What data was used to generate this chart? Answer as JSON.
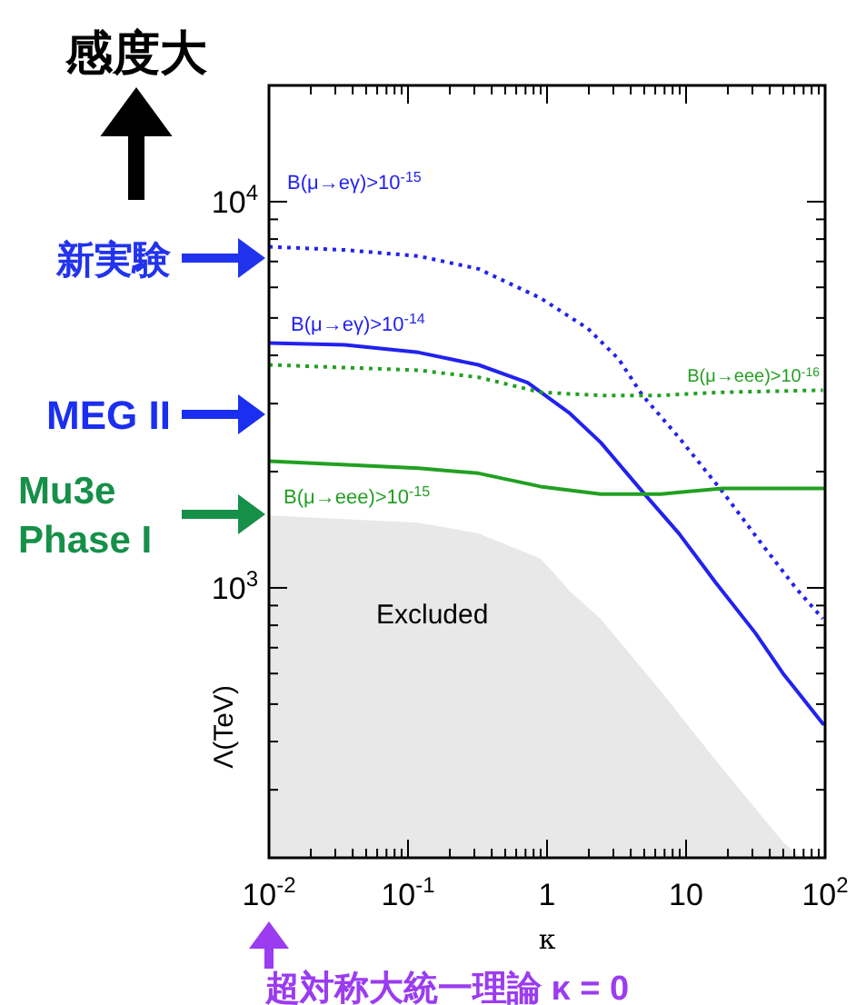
{
  "chart_data": {
    "type": "line",
    "xlabel": "κ",
    "ylabel": "Λ(TeV)",
    "log": "xy",
    "xlim": [
      0.01,
      100
    ],
    "ylim": [
      200,
      20000
    ],
    "xticks": [
      {
        "value": 0.01,
        "label": "10$^{-2}$"
      },
      {
        "value": 0.02,
        "label": null
      },
      {
        "value": 0.03,
        "label": null
      },
      {
        "value": 0.04,
        "label": null
      },
      {
        "value": 0.05,
        "label": null
      },
      {
        "value": 0.06,
        "label": null
      },
      {
        "value": 0.07,
        "label": null
      },
      {
        "value": 0.08,
        "label": null
      },
      {
        "value": 0.09,
        "label": null
      },
      {
        "value": 0.1,
        "label": "10$^{-1}$"
      },
      {
        "value": 0.2,
        "label": null
      },
      {
        "value": 0.3,
        "label": null
      },
      {
        "value": 0.4,
        "label": null
      },
      {
        "value": 0.5,
        "label": null
      },
      {
        "value": 0.6,
        "label": null
      },
      {
        "value": 0.7,
        "label": null
      },
      {
        "value": 0.8,
        "label": null
      },
      {
        "value": 0.9,
        "label": null
      },
      1,
      {
        "value": 2,
        "label": null
      },
      {
        "value": 3,
        "label": null
      },
      {
        "value": 4,
        "label": null
      },
      {
        "value": 5,
        "label": null
      },
      {
        "value": 6,
        "label": null
      },
      {
        "value": 7,
        "label": null
      },
      {
        "value": 8,
        "label": null
      },
      {
        "value": 9,
        "label": null
      },
      10,
      {
        "value": 20,
        "label": null
      },
      {
        "value": 30,
        "label": null
      },
      {
        "value": 40,
        "label": null
      },
      {
        "value": 50,
        "label": null
      },
      {
        "value": 60,
        "label": null
      },
      {
        "value": 70,
        "label": null
      },
      {
        "value": 80,
        "label": null
      },
      {
        "value": 90,
        "label": null
      },
      {
        "value": 100,
        "label": "10$^{2}$"
      }
    ],
    "yticks": [
      {
        "value": 300,
        "label": null
      },
      {
        "value": 400,
        "label": null
      },
      {
        "value": 500,
        "label": null
      },
      {
        "value": 600,
        "label": null
      },
      {
        "value": 700,
        "label": null
      },
      {
        "value": 800,
        "label": null
      },
      {
        "value": 900,
        "label": null
      },
      {
        "value": 1000,
        "label": "10$^{3}$"
      },
      {
        "value": 2000,
        "label": null
      },
      {
        "value": 3000,
        "label": null
      },
      {
        "value": 4000,
        "label": null
      },
      {
        "value": 5000,
        "label": null
      },
      {
        "value": 6000,
        "label": null
      },
      {
        "value": 7000,
        "label": null
      },
      {
        "value": 8000,
        "label": null
      },
      {
        "value": 9000,
        "label": null
      },
      {
        "value": 10000,
        "label": "10$^{4}$"
      }
    ],
    "series": [
      {
        "type": "area",
        "name": "Excluded",
        "color": "#e8e8e8",
        "x": [
          0.01,
          0.119,
          0.321,
          0.897,
          1.1,
          1.46,
          2.43,
          6.58,
          18.3,
          49.7,
          67.1
        ],
        "values": [
          1540,
          1475,
          1383,
          1190,
          1100,
          979,
          832,
          540,
          340,
          220,
          200
        ]
      },
      {
        "name": "B(μ→eγ)>10$^{-15}$",
        "color": "#2222ee",
        "line_style": "dotted",
        "x": [
          0.01,
          0.035,
          0.119,
          0.321,
          0.897,
          1.97,
          3.28,
          4.86,
          8.89,
          18.3,
          33.6,
          61.4,
          96.4
        ],
        "values": [
          7640,
          7500,
          7230,
          6700,
          5630,
          4690,
          3910,
          3150,
          2450,
          1774,
          1325,
          1000,
          832
        ]
      },
      {
        "name": "B(μ→eγ)>10$^{-14}$",
        "color": "#2222ee",
        "line_style": "solid",
        "x": [
          0.01,
          0.035,
          0.119,
          0.321,
          0.726,
          1.46,
          2.43,
          4.86,
          8.89,
          16.3,
          31.5,
          49.7,
          96.4
        ],
        "values": [
          4305,
          4260,
          4070,
          3780,
          3400,
          2830,
          2380,
          1774,
          1383,
          1033,
          764,
          601,
          445
        ]
      },
      {
        "name": "B(μ→eee)>10$^{-16}$",
        "color": "#22a022",
        "line_style": "dotted",
        "x": [
          0.01,
          0.119,
          0.321,
          0.897,
          2.43,
          6.58,
          18.3,
          96.4
        ],
        "values": [
          3780,
          3660,
          3510,
          3210,
          3150,
          3150,
          3210,
          3250
        ]
      },
      {
        "name": "B(μ→eee)>10$^{-15}$",
        "color": "#22a022",
        "line_style": "solid",
        "x": [
          0.01,
          0.119,
          0.321,
          0.897,
          2.43,
          6.58,
          18.3,
          96.4
        ],
        "values": [
          2130,
          2040,
          1980,
          1830,
          1750,
          1750,
          1810,
          1810
        ]
      }
    ],
    "annotations": [
      "感度大",
      "新実験",
      "MEG II",
      "Mu3e Phase I",
      "超対称大統一理論 κ = 0"
    ],
    "marker": "none"
  }
}
